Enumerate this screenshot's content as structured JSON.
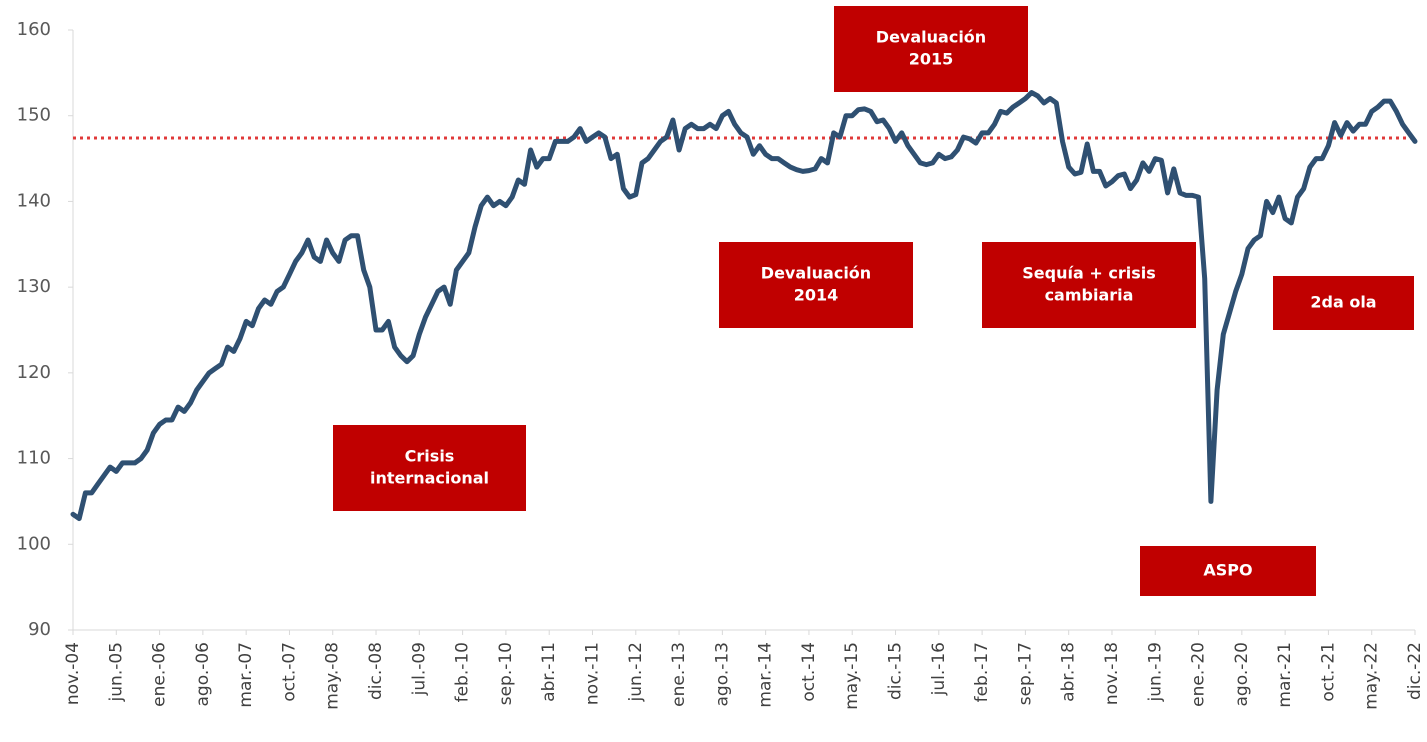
{
  "chart_data": {
    "type": "line",
    "categories": [
      "nov.-04",
      null,
      null,
      null,
      null,
      null,
      null,
      "jun.-05",
      null,
      null,
      null,
      null,
      null,
      null,
      "ene.-06",
      null,
      null,
      null,
      null,
      null,
      null,
      "ago.-06",
      null,
      null,
      null,
      null,
      null,
      null,
      "mar.-07",
      null,
      null,
      null,
      null,
      null,
      null,
      "oct.-07",
      null,
      null,
      null,
      null,
      null,
      null,
      "may.-08",
      null,
      null,
      null,
      null,
      null,
      null,
      "dic.-08",
      null,
      null,
      null,
      null,
      null,
      null,
      "jul.-09",
      null,
      null,
      null,
      null,
      null,
      null,
      "feb.-10",
      null,
      null,
      null,
      null,
      null,
      null,
      "sep.-10",
      null,
      null,
      null,
      null,
      null,
      null,
      "abr.-11",
      null,
      null,
      null,
      null,
      null,
      null,
      "nov.-11",
      null,
      null,
      null,
      null,
      null,
      null,
      "jun.-12",
      null,
      null,
      null,
      null,
      null,
      null,
      "ene.-13",
      null,
      null,
      null,
      null,
      null,
      null,
      "ago.-13",
      null,
      null,
      null,
      null,
      null,
      null,
      "mar.-14",
      null,
      null,
      null,
      null,
      null,
      null,
      "oct.-14",
      null,
      null,
      null,
      null,
      null,
      null,
      "may.-15",
      null,
      null,
      null,
      null,
      null,
      null,
      "dic.-15",
      null,
      null,
      null,
      null,
      null,
      null,
      "jul.-16",
      null,
      null,
      null,
      null,
      null,
      null,
      "feb.-17",
      null,
      null,
      null,
      null,
      null,
      null,
      "sep.-17",
      null,
      null,
      null,
      null,
      null,
      null,
      "abr.-18",
      null,
      null,
      null,
      null,
      null,
      null,
      "nov.-18",
      null,
      null,
      null,
      null,
      null,
      null,
      "jun.-19",
      null,
      null,
      null,
      null,
      null,
      null,
      "ene.-20",
      null,
      null,
      null,
      null,
      null,
      null,
      "ago.-20",
      null,
      null,
      null,
      null,
      null,
      null,
      "mar.-21",
      null,
      null,
      null,
      null,
      null,
      null,
      "oct.-21",
      null,
      null,
      null,
      null,
      null,
      null,
      "may.-22",
      null,
      null,
      null,
      null,
      null,
      null,
      "dic.-22"
    ],
    "series": [
      {
        "color": "#2f5072",
        "values": [
          103.5,
          103,
          106,
          106,
          107,
          108,
          109,
          108.5,
          109.5,
          109.5,
          109.5,
          110,
          111,
          113,
          114,
          114.5,
          114.5,
          116,
          115.5,
          116.5,
          118,
          119,
          120,
          120.5,
          121,
          123,
          122.5,
          124,
          126,
          125.5,
          127.5,
          128.5,
          128,
          129.5,
          130,
          131.5,
          133,
          134,
          135.5,
          133.5,
          133,
          135.5,
          134,
          133,
          135.5,
          136,
          136,
          132,
          130,
          125,
          125,
          126,
          123,
          122,
          121.3,
          122,
          124.5,
          126.5,
          128,
          129.5,
          130,
          128,
          132,
          133,
          134,
          137,
          139.5,
          140.5,
          139.5,
          140,
          139.5,
          140.5,
          142.5,
          142,
          146,
          144,
          145,
          145,
          147,
          147,
          147,
          147.5,
          148.5,
          147,
          147.5,
          148,
          147.5,
          145,
          145.5,
          141.5,
          140.5,
          140.8,
          144.5,
          145,
          146,
          147,
          147.5,
          149.5,
          146,
          148.5,
          149,
          148.5,
          148.5,
          149,
          148.5,
          150,
          150.5,
          149,
          148,
          147.5,
          145.5,
          146.5,
          145.5,
          145,
          145,
          144.5,
          144,
          143.7,
          143.5,
          143.6,
          143.8,
          145,
          144.5,
          148,
          147.5,
          150,
          150,
          150.7,
          150.8,
          150.5,
          149.3,
          149.5,
          148.5,
          147,
          148,
          146.5,
          145.5,
          144.5,
          144.3,
          144.5,
          145.5,
          145,
          145.2,
          146,
          147.5,
          147.3,
          146.8,
          148,
          148,
          149,
          150.5,
          150.3,
          151,
          151.5,
          152,
          152.7,
          152.3,
          151.5,
          152,
          151.5,
          147,
          144,
          143.2,
          143.4,
          146.7,
          143.5,
          143.5,
          141.8,
          142.3,
          143,
          143.2,
          141.5,
          142.5,
          144.5,
          143.5,
          145,
          144.8,
          141,
          143.8,
          141,
          140.7,
          140.7,
          140.5,
          131,
          105,
          118,
          124.5,
          127,
          129.5,
          131.5,
          134.5,
          135.5,
          136,
          140,
          138.7,
          140.5,
          138,
          137.5,
          140.5,
          141.5,
          144,
          145,
          145,
          146.5,
          149.2,
          147.7,
          149.2,
          148.2,
          149,
          149,
          150.5,
          151,
          151.7,
          151.7,
          150.5,
          149,
          148,
          147
        ]
      }
    ],
    "reference_line": {
      "value": 147.4,
      "color": "#e03a3a"
    },
    "ylim": [
      90,
      160
    ],
    "yticks": [
      90,
      100,
      110,
      120,
      130,
      140,
      150,
      160
    ],
    "annotations": [
      {
        "lines": [
          "Devaluación",
          "2015"
        ],
        "color": "#c00000"
      },
      {
        "lines": [
          "Devaluación",
          "2014"
        ],
        "color": "#c00000"
      },
      {
        "lines": [
          "Sequía + crisis",
          "cambiaria"
        ],
        "color": "#c00000"
      },
      {
        "lines": [
          "2da ola"
        ],
        "color": "#c00000"
      },
      {
        "lines": [
          "Crisis",
          "internacional"
        ],
        "color": "#c00000"
      },
      {
        "lines": [
          "ASPO"
        ],
        "color": "#c00000"
      }
    ]
  }
}
